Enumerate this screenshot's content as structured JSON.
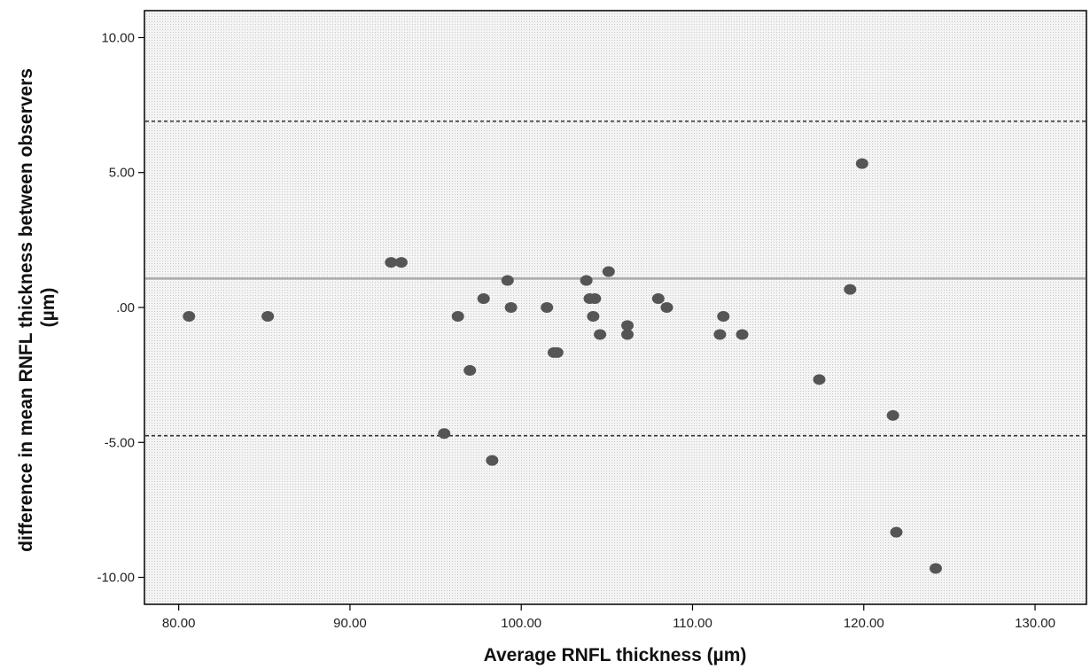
{
  "chart_data": {
    "type": "scatter",
    "title": "",
    "xlabel": "Average RNFL thickness (µm)",
    "ylabel": "difference in mean RNFL thickness between observers (µm)",
    "ylabel_lines": [
      "difference in mean RNFL thickness between observers",
      "(µm)"
    ],
    "xlim": [
      78,
      133
    ],
    "ylim": [
      -11,
      11
    ],
    "x_ticks": [
      80,
      90,
      100,
      110,
      120,
      130
    ],
    "x_tick_labels": [
      "80.00",
      "90.00",
      "100.00",
      "110.00",
      "120.00",
      "130.00"
    ],
    "y_ticks": [
      10,
      5,
      0,
      -5,
      -10
    ],
    "y_tick_labels": [
      "10.00",
      "5.00",
      ".00",
      "-5.00",
      "-10.00"
    ],
    "grid": false,
    "background": "dotted",
    "reference_lines": [
      {
        "name": "mean",
        "y": 1.07,
        "style": "solid",
        "color": "#aaaaaa"
      },
      {
        "name": "upper limit",
        "y": 6.9,
        "style": "dashed",
        "color": "#333333"
      },
      {
        "name": "lower limit",
        "y": -4.75,
        "style": "dashed",
        "color": "#333333"
      }
    ],
    "series": [
      {
        "color": "#555555",
        "points": [
          {
            "x": 80.6,
            "y": -0.33
          },
          {
            "x": 85.2,
            "y": -0.33
          },
          {
            "x": 92.4,
            "y": 1.67
          },
          {
            "x": 93.0,
            "y": 1.67
          },
          {
            "x": 95.5,
            "y": -4.67
          },
          {
            "x": 96.3,
            "y": -0.33
          },
          {
            "x": 97.0,
            "y": -2.33
          },
          {
            "x": 97.8,
            "y": 0.33
          },
          {
            "x": 98.3,
            "y": -5.67
          },
          {
            "x": 99.2,
            "y": 1.0
          },
          {
            "x": 99.4,
            "y": 0.0
          },
          {
            "x": 101.5,
            "y": 0.0
          },
          {
            "x": 101.9,
            "y": -1.67
          },
          {
            "x": 102.1,
            "y": -1.67
          },
          {
            "x": 103.8,
            "y": 1.0
          },
          {
            "x": 104.0,
            "y": 0.33
          },
          {
            "x": 104.3,
            "y": 0.33
          },
          {
            "x": 104.2,
            "y": -0.33
          },
          {
            "x": 104.6,
            "y": -1.0
          },
          {
            "x": 105.1,
            "y": 1.33
          },
          {
            "x": 106.2,
            "y": -0.67
          },
          {
            "x": 106.2,
            "y": -1.0
          },
          {
            "x": 108.0,
            "y": 0.33
          },
          {
            "x": 108.5,
            "y": 0.0
          },
          {
            "x": 111.6,
            "y": -1.0
          },
          {
            "x": 111.8,
            "y": -0.33
          },
          {
            "x": 112.9,
            "y": -1.0
          },
          {
            "x": 117.4,
            "y": -2.67
          },
          {
            "x": 119.2,
            "y": 0.67
          },
          {
            "x": 119.9,
            "y": 5.33
          },
          {
            "x": 121.7,
            "y": -4.0
          },
          {
            "x": 121.9,
            "y": -8.33
          },
          {
            "x": 124.2,
            "y": -9.67
          }
        ]
      }
    ]
  }
}
